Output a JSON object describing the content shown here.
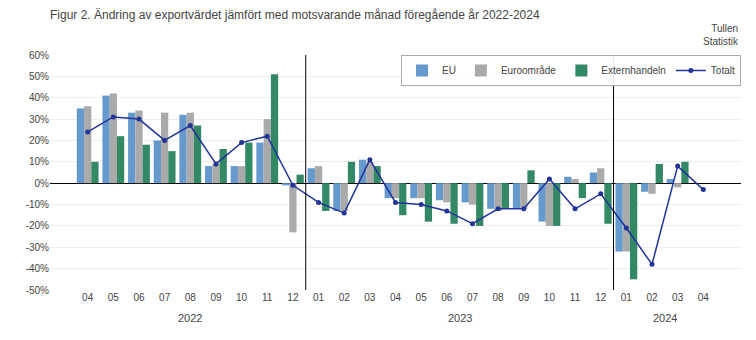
{
  "chart_data": {
    "type": "bar",
    "title": "Figur 2. Ändring av exportvärdet jämfört med motsvarande månad föregående år 2022-2024",
    "annotations": [
      "2022",
      "2023",
      "2024",
      "Tullen\nStatistik"
    ],
    "categories": [
      "04",
      "05",
      "06",
      "07",
      "08",
      "09",
      "10",
      "11",
      "12",
      "01",
      "02",
      "03",
      "04",
      "05",
      "06",
      "07",
      "08",
      "09",
      "10",
      "11",
      "12",
      "01",
      "02",
      "03",
      "04"
    ],
    "series": [
      {
        "name": "EU",
        "type": "bar",
        "color": "#6699CC",
        "values": [
          35,
          41,
          33,
          20,
          32,
          8,
          8,
          19,
          -1,
          7,
          -13,
          11,
          -7,
          -7,
          -8,
          -9,
          -12,
          -12,
          -18,
          3,
          5,
          -32,
          -4,
          2,
          0
        ]
      },
      {
        "name": "Euroområde",
        "type": "bar",
        "color": "#AAAAAA",
        "values": [
          36,
          42,
          34,
          33,
          33,
          9,
          8,
          30,
          -23,
          8,
          -13,
          10,
          -7,
          -7,
          -9,
          -10,
          -13,
          -12,
          -20,
          2,
          7,
          -32,
          -5,
          -2,
          0
        ]
      },
      {
        "name": "Externhandeln",
        "type": "bar",
        "color": "#338866",
        "values": [
          10,
          22,
          18,
          15,
          27,
          16,
          19,
          51,
          4,
          -13,
          10,
          8,
          -15,
          -18,
          -19,
          -20,
          -12,
          6,
          -20,
          -7,
          -19,
          -45,
          9,
          10,
          0
        ]
      },
      {
        "name": "Totalt",
        "type": "line",
        "color": "#223399",
        "marker": "circle",
        "values": [
          24,
          31,
          30,
          20,
          27,
          9,
          19,
          22,
          -1,
          -9,
          -14,
          11,
          -9,
          -10,
          -13,
          -19,
          -12,
          -12,
          2,
          -12,
          -5,
          -21,
          -38,
          8,
          -3
        ]
      }
    ],
    "ylim": [
      -50,
      60
    ],
    "yticks": [
      {
        "value": -50,
        "label": "-50%"
      },
      {
        "value": -40,
        "label": "-40%"
      },
      {
        "value": -30,
        "label": "-30%"
      },
      {
        "value": -20,
        "label": "-20%"
      },
      {
        "value": -10,
        "label": "-10%"
      },
      {
        "value": 0,
        "label": "0%"
      },
      {
        "value": 10,
        "label": "10%"
      },
      {
        "value": 20,
        "label": "20%"
      },
      {
        "value": 30,
        "label": "30%"
      },
      {
        "value": 40,
        "label": "40%"
      },
      {
        "value": 50,
        "label": "50%"
      },
      {
        "value": 60,
        "label": "60%"
      }
    ],
    "grid": true,
    "legend": "upper right"
  }
}
